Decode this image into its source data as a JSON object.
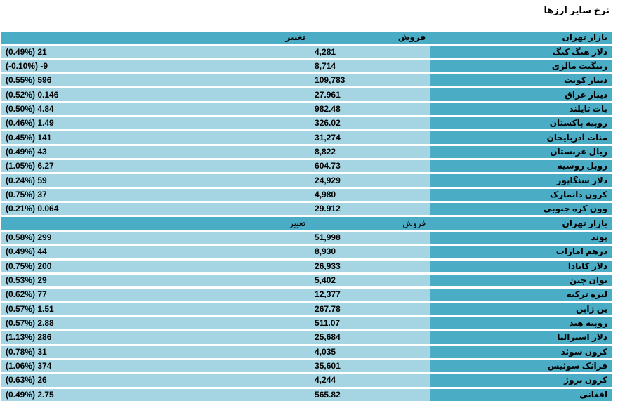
{
  "title": "نرخ سایر ارزها",
  "header": {
    "market": "بازار تهران",
    "sell": "فروش",
    "change": "تغییر"
  },
  "rows": [
    {
      "name": "دلار هنگ کنگ",
      "sell": "4,281",
      "change": "21 (0.49%)"
    },
    {
      "name": "رینگیت مالزی",
      "sell": "8,714",
      "change": "9- (0.10%-)"
    },
    {
      "name": "دینار کویت",
      "sell": "109,783",
      "change": "596 (0.55%)"
    },
    {
      "name": "دینار عراق",
      "sell": "27.961",
      "change": "0.146 (0.52%)"
    },
    {
      "name": "بات تایلند",
      "sell": "982.48",
      "change": "4.84 (0.50%)"
    },
    {
      "name": "روپیه پاکستان",
      "sell": "326.02",
      "change": "1.49 (0.46%)"
    },
    {
      "name": "منات آذربایجان",
      "sell": "31,274",
      "change": "141 (0.45%)"
    },
    {
      "name": "ریال عربستان",
      "sell": "8,822",
      "change": "43 (0.49%)"
    },
    {
      "name": "روبل روسیه",
      "sell": "604.73",
      "change": "6.27 (1.05%)"
    },
    {
      "name": "دلار سنگاپور",
      "sell": "24,929",
      "change": "59 (0.24%)"
    },
    {
      "name": "کرون دانمارک",
      "sell": "4,980",
      "change": "37 (0.75%)"
    },
    {
      "name": "وون کره جنوبی",
      "sell": "29.912",
      "change": "0.064 (0.21%)"
    }
  ],
  "subheader": {
    "market": "بازار تهران",
    "sell": "فروش",
    "change": "تغییر"
  },
  "rows2": [
    {
      "name": "پوند",
      "sell": "51,998",
      "change": "299 (0.58%)"
    },
    {
      "name": "درهم امارات",
      "sell": "8,930",
      "change": "44 (0.49%)"
    },
    {
      "name": "دلار کانادا",
      "sell": "26,933",
      "change": "200 (0.75%)"
    },
    {
      "name": "یوان چین",
      "sell": "5,402",
      "change": "29 (0.53%)"
    },
    {
      "name": "لیره ترکیه",
      "sell": "12,377",
      "change": "77 (0.62%)"
    },
    {
      "name": "ین ژاپن",
      "sell": "267.78",
      "change": "1.51 (0.57%)"
    },
    {
      "name": "روپیه هند",
      "sell": "511.07",
      "change": "2.88 (0.57%)"
    },
    {
      "name": "دلار استرالیا",
      "sell": "25,684",
      "change": "286 (1.13%)"
    },
    {
      "name": "کرون سوئد",
      "sell": "4,035",
      "change": "31 (0.78%)"
    },
    {
      "name": "فرانک سوئیس",
      "sell": "35,601",
      "change": "374 (1.06%)"
    },
    {
      "name": "کرون نروژ",
      "sell": "4,244",
      "change": "26 (0.63%)"
    },
    {
      "name": "افغانی",
      "sell": "565.82",
      "change": "2.75 (0.49%)"
    }
  ]
}
